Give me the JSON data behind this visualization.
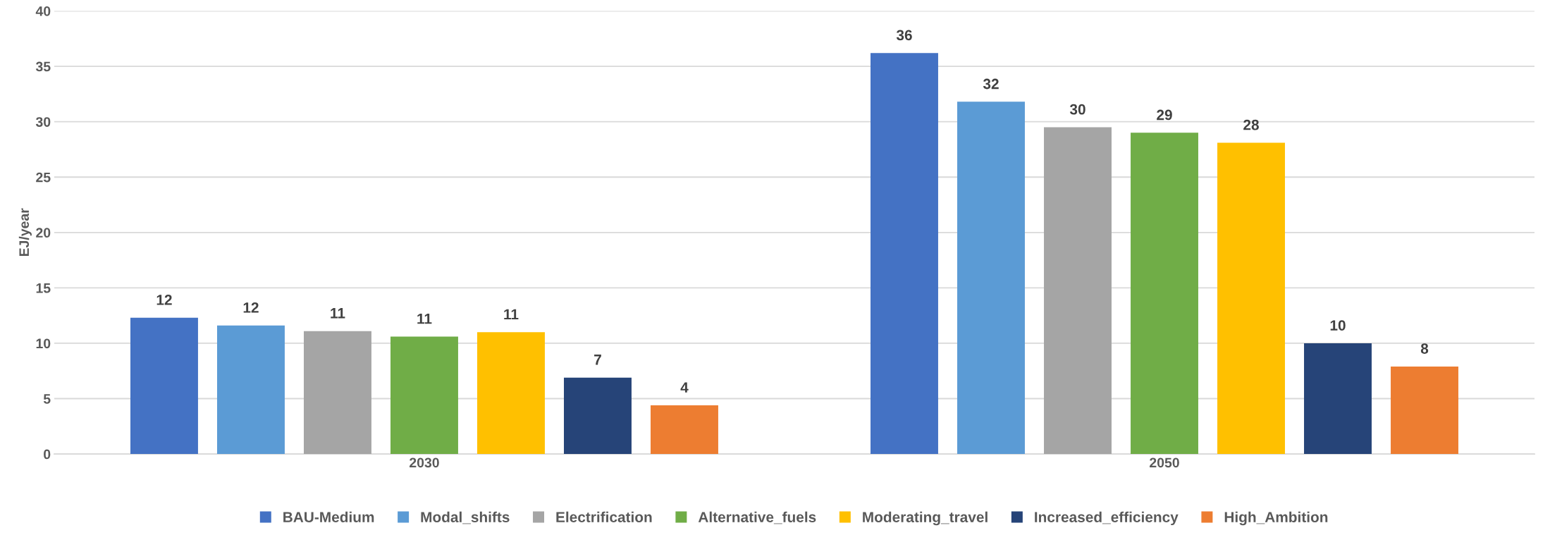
{
  "chart_data": {
    "type": "bar",
    "ylabel": "EJ/year",
    "categories": [
      "2030",
      "2050"
    ],
    "series": [
      {
        "name": "BAU-Medium",
        "color": "#4472c4",
        "values": [
          12.3,
          36.2
        ],
        "value_labels": [
          "12",
          "36"
        ]
      },
      {
        "name": "Modal_shifts",
        "color": "#5b9bd5",
        "values": [
          11.6,
          31.8
        ],
        "value_labels": [
          "12",
          "32"
        ]
      },
      {
        "name": "Electrification",
        "color": "#a5a5a5",
        "values": [
          11.1,
          29.5
        ],
        "value_labels": [
          "11",
          "30"
        ]
      },
      {
        "name": "Alternative_fuels",
        "color": "#70ad47",
        "values": [
          10.6,
          29.0
        ],
        "value_labels": [
          "11",
          "29"
        ]
      },
      {
        "name": "Moderating_travel",
        "color": "#ffc000",
        "values": [
          11.0,
          28.1
        ],
        "value_labels": [
          "11",
          "28"
        ]
      },
      {
        "name": "Increased_efficiency",
        "color": "#264478",
        "values": [
          6.9,
          10.0
        ],
        "value_labels": [
          "7",
          "10"
        ]
      },
      {
        "name": "High_Ambition",
        "color": "#ed7d31",
        "values": [
          4.4,
          7.9
        ],
        "value_labels": [
          "4",
          "8"
        ]
      }
    ],
    "ylim": [
      0,
      40
    ],
    "yticks": [
      0,
      5,
      10,
      15,
      20,
      25,
      30,
      35,
      40
    ],
    "grid": "y",
    "legend": "bottom"
  }
}
